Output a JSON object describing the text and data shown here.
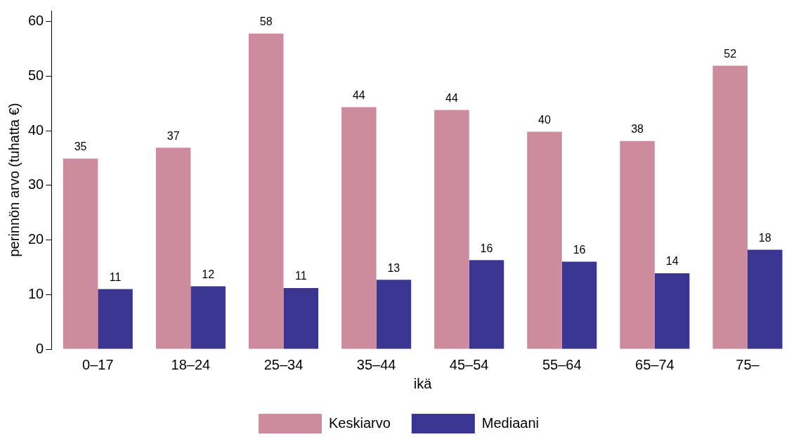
{
  "chart_data": {
    "type": "bar",
    "xlabel": "ikä",
    "ylabel": "perinnön arvo (tuhatta €)",
    "categories": [
      "0–17",
      "18–24",
      "25–34",
      "35–44",
      "45–54",
      "55–64",
      "65–74",
      "75–"
    ],
    "series": [
      {
        "name": "Keskiarvo",
        "color": "#cc8c9e",
        "values": [
          34.9,
          36.9,
          57.8,
          44.3,
          43.8,
          39.8,
          38.1,
          51.9
        ],
        "value_labels": [
          "35",
          "37",
          "58",
          "44",
          "44",
          "40",
          "38",
          "52"
        ]
      },
      {
        "name": "Mediaani",
        "color": "#3a3591",
        "values": [
          11.0,
          11.5,
          11.2,
          12.7,
          16.3,
          16.0,
          13.9,
          18.2
        ],
        "value_labels": [
          "11",
          "12",
          "11",
          "13",
          "16",
          "16",
          "14",
          "18"
        ]
      }
    ],
    "ylim": [
      0,
      62
    ],
    "yticks": [
      0,
      10,
      20,
      30,
      40,
      50,
      60
    ],
    "grid": false,
    "legend": "bottom"
  }
}
